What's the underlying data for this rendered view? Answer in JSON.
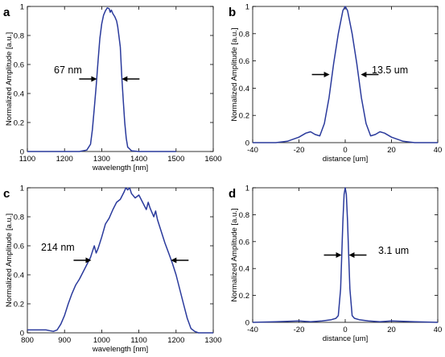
{
  "chart_data": [
    {
      "panel": "a",
      "type": "line",
      "xlabel": "wavelength [nm]",
      "ylabel": "Normalized  Amplitude [a.u.]",
      "xlim": [
        1100,
        1600
      ],
      "ylim": [
        0,
        1
      ],
      "xticks": [
        1100,
        1200,
        1300,
        1400,
        1500,
        1600
      ],
      "yticks": [
        0,
        0.2,
        0.4,
        0.6,
        0.8,
        1
      ],
      "annotation": "67 nm",
      "arrows": [
        {
          "x": 1287,
          "y": 0.5,
          "dir": "right"
        },
        {
          "x": 1354,
          "y": 0.5,
          "dir": "left"
        }
      ],
      "series": [
        {
          "x": [
            1100,
            1150,
            1200,
            1240,
            1260,
            1270,
            1275,
            1280,
            1285,
            1290,
            1295,
            1300,
            1305,
            1310,
            1315,
            1320,
            1323,
            1326,
            1330,
            1335,
            1340,
            1343,
            1346,
            1350,
            1354,
            1358,
            1362,
            1366,
            1370,
            1380,
            1400,
            1450,
            1500
          ],
          "y": [
            0,
            0,
            0,
            0,
            0.01,
            0.05,
            0.15,
            0.3,
            0.45,
            0.62,
            0.78,
            0.88,
            0.94,
            0.97,
            0.99,
            0.985,
            0.96,
            0.975,
            0.95,
            0.93,
            0.9,
            0.86,
            0.8,
            0.72,
            0.52,
            0.35,
            0.2,
            0.09,
            0.03,
            0.005,
            0,
            0,
            0
          ]
        }
      ]
    },
    {
      "panel": "b",
      "type": "line",
      "xlabel": "distance [um]",
      "ylabel": "Normalized  Amplitude  [a.u.]",
      "xlim": [
        -40,
        40
      ],
      "ylim": [
        0,
        1
      ],
      "xticks": [
        -40,
        -20,
        0,
        20,
        40
      ],
      "yticks": [
        0,
        0.2,
        0.4,
        0.6,
        0.8,
        1
      ],
      "annotation": "13.5 um",
      "arrows": [
        {
          "x": -6.75,
          "y": 0.5,
          "dir": "right"
        },
        {
          "x": 6.75,
          "y": 0.5,
          "dir": "left"
        }
      ],
      "series": [
        {
          "x": [
            -40,
            -30,
            -25,
            -20,
            -17,
            -15,
            -13,
            -11,
            -9,
            -7,
            -5,
            -3,
            -1,
            0,
            1,
            3,
            5,
            7,
            9,
            11,
            13,
            15,
            17,
            20,
            25,
            30,
            40
          ],
          "y": [
            0,
            0,
            0.01,
            0.04,
            0.07,
            0.08,
            0.06,
            0.05,
            0.14,
            0.33,
            0.58,
            0.8,
            0.97,
            1,
            0.97,
            0.8,
            0.58,
            0.33,
            0.14,
            0.05,
            0.06,
            0.08,
            0.07,
            0.04,
            0.01,
            0,
            0
          ]
        }
      ]
    },
    {
      "panel": "c",
      "type": "line",
      "xlabel": "wavelength [nm]",
      "ylabel": "Normalized  Amplitude [a.u.]",
      "xlim": [
        800,
        1300
      ],
      "ylim": [
        0,
        1
      ],
      "xticks": [
        800,
        900,
        1000,
        1100,
        1200,
        1300
      ],
      "yticks": [
        0,
        0.2,
        0.4,
        0.6,
        0.8,
        1
      ],
      "annotation": "214 nm",
      "arrows": [
        {
          "x": 972,
          "y": 0.5,
          "dir": "right"
        },
        {
          "x": 1186,
          "y": 0.5,
          "dir": "left"
        }
      ],
      "series": [
        {
          "x": [
            800,
            830,
            850,
            860,
            870,
            880,
            890,
            900,
            910,
            920,
            930,
            940,
            950,
            960,
            970,
            975,
            980,
            985,
            990,
            1000,
            1010,
            1020,
            1030,
            1040,
            1050,
            1060,
            1065,
            1070,
            1075,
            1080,
            1090,
            1100,
            1110,
            1120,
            1125,
            1130,
            1140,
            1145,
            1150,
            1160,
            1170,
            1180,
            1190,
            1200,
            1210,
            1220,
            1230,
            1240,
            1250,
            1260,
            1270,
            1300
          ],
          "y": [
            0.02,
            0.02,
            0.02,
            0.015,
            0.01,
            0.02,
            0.06,
            0.12,
            0.2,
            0.27,
            0.33,
            0.37,
            0.42,
            0.47,
            0.52,
            0.56,
            0.6,
            0.55,
            0.58,
            0.66,
            0.75,
            0.79,
            0.85,
            0.9,
            0.92,
            0.97,
            1,
            0.985,
            1,
            0.96,
            0.93,
            0.95,
            0.9,
            0.85,
            0.9,
            0.86,
            0.8,
            0.84,
            0.78,
            0.7,
            0.62,
            0.55,
            0.48,
            0.4,
            0.3,
            0.2,
            0.1,
            0.03,
            0.01,
            0,
            0,
            0
          ]
        }
      ]
    },
    {
      "panel": "d",
      "type": "line",
      "xlabel": "distance [um]",
      "ylabel": "Normalized  Amplitude  [a.u.]",
      "xlim": [
        -40,
        40
      ],
      "ylim": [
        0,
        1
      ],
      "xticks": [
        -40,
        -20,
        0,
        20,
        40
      ],
      "yticks": [
        0,
        0.2,
        0.4,
        0.6,
        0.8,
        1
      ],
      "annotation": "3.1 um",
      "arrows": [
        {
          "x": -1.55,
          "y": 0.5,
          "dir": "right"
        },
        {
          "x": 1.55,
          "y": 0.5,
          "dir": "left"
        }
      ],
      "series": [
        {
          "x": [
            -40,
            -30,
            -20,
            -15,
            -10,
            -6,
            -4,
            -3,
            -2,
            -1.5,
            -1,
            -0.5,
            0,
            0.5,
            1,
            1.5,
            2,
            3,
            4,
            6,
            10,
            15,
            20,
            30,
            40
          ],
          "y": [
            0,
            0.005,
            0.01,
            0.005,
            0.01,
            0.02,
            0.03,
            0.05,
            0.25,
            0.5,
            0.75,
            0.95,
            1,
            0.95,
            0.75,
            0.5,
            0.25,
            0.05,
            0.03,
            0.02,
            0.01,
            0.005,
            0.01,
            0.005,
            0
          ]
        }
      ]
    }
  ]
}
